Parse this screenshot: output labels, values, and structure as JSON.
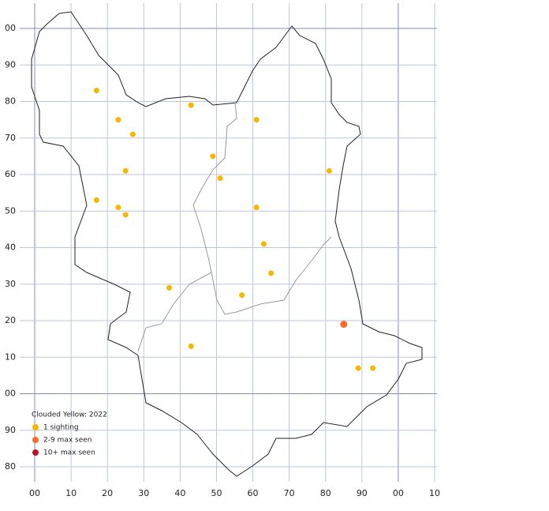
{
  "chart_data": {
    "type": "scatter",
    "xlim": [
      0,
      110
    ],
    "ylim": [
      -20,
      100
    ],
    "xticks": [
      {
        "value": 0,
        "label": "00"
      },
      10,
      20,
      30,
      40,
      50,
      60,
      70,
      80,
      90,
      {
        "value": 100,
        "label": "00"
      },
      {
        "value": 110,
        "label": "10"
      }
    ],
    "yticks": [
      {
        "value": -20,
        "label": "80"
      },
      {
        "value": -10,
        "label": "90"
      },
      {
        "value": 0,
        "label": "00"
      },
      10,
      20,
      30,
      40,
      50,
      60,
      70,
      80,
      90,
      {
        "value": 100,
        "label": "00"
      }
    ],
    "grid": true,
    "legend_title": "Clouded Yellow:  2022",
    "legend_position": "lower left",
    "series": [
      {
        "name": "1 sighting",
        "color": "#f5b800",
        "x": [
          17,
          43,
          23,
          61,
          27,
          49,
          25,
          51,
          81,
          17,
          23,
          25,
          61,
          63,
          65,
          37,
          57,
          43,
          89,
          93
        ],
        "y": [
          83,
          79,
          75,
          75,
          71,
          65,
          61,
          59,
          61,
          53,
          51,
          49,
          51,
          41,
          33,
          29,
          27,
          13,
          7,
          7
        ]
      },
      {
        "name": "2-9 max seen",
        "color": "#ff6a2a",
        "x": [
          85
        ],
        "y": [
          19
        ]
      },
      {
        "name": "10+ max seen",
        "color": "#c0102a",
        "x": [],
        "y": []
      }
    ]
  }
}
